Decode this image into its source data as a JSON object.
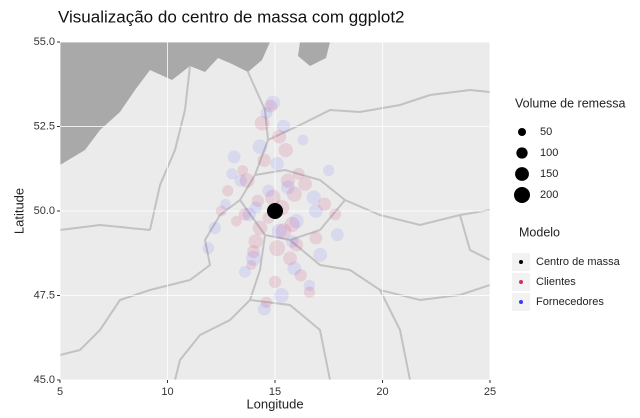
{
  "chart_data": {
    "type": "scatter",
    "title": "Visualização do centro de massa com ggplot2",
    "x_label": "Longitude",
    "y_label": "Latitude",
    "xlim": [
      5,
      25
    ],
    "ylim": [
      45,
      55
    ],
    "xticks": [
      5,
      10,
      15,
      20,
      25
    ],
    "yticks": [
      {
        "value": 45,
        "label": "45.0"
      },
      47.5,
      {
        "value": 50,
        "label": "50.0"
      },
      52.5,
      {
        "value": 55,
        "label": "55.0"
      }
    ],
    "grid": true,
    "size_legend": {
      "title": "Volume de remessa",
      "values": [
        50,
        100,
        150,
        200
      ]
    },
    "legend_title": "Modelo",
    "series": [
      {
        "name": "Centro de massa",
        "color": "#000000",
        "opacity": 1,
        "x": [
          15
        ],
        "y": [
          50
        ],
        "sizes": [
          200
        ]
      },
      {
        "name": "Clientes",
        "color": "#d0306a",
        "opacity": 0.14,
        "x": [
          14.2,
          15.8,
          13.5,
          16.4,
          15.1,
          14.7,
          15.5,
          13.9,
          16.9,
          14.4,
          15.3,
          12.8,
          17.3,
          15.0,
          14.1,
          16.1,
          13.2,
          15.7,
          14.8,
          16.6,
          13.7,
          15.4,
          14.5,
          16.2,
          12.5,
          17.8,
          15.2,
          14.0,
          15.9,
          14.6,
          14.9,
          15.6,
          14.3,
          16.0,
          13.6
        ],
        "y": [
          50.3,
          49.6,
          51.2,
          50.8,
          48.9,
          49.8,
          51.8,
          48.4,
          49.2,
          52.6,
          50.1,
          50.6,
          50.2,
          47.9,
          49.1,
          51.1,
          49.7,
          48.6,
          53.1,
          47.6,
          50.9,
          49.4,
          51.5,
          48.1,
          50.0,
          49.9,
          52.2,
          48.8,
          50.5,
          47.3,
          50.4,
          50.9,
          49.5,
          49.0,
          49.9
        ],
        "sizes": [
          120,
          180,
          90,
          150,
          200,
          110,
          160,
          80,
          130,
          170,
          190,
          100,
          140,
          120,
          160,
          110,
          90,
          150,
          130,
          100,
          170,
          200,
          140,
          120,
          90,
          110,
          150,
          130,
          180,
          100,
          190,
          160,
          170,
          140,
          120
        ]
      },
      {
        "name": "Fornecedores",
        "color": "#3a3aff",
        "opacity": 0.1,
        "x": [
          13.1,
          16.8,
          14.6,
          15.9,
          12.2,
          17.5,
          15.3,
          13.8,
          16.3,
          14.0,
          15.6,
          11.9,
          17.9,
          14.9,
          13.4,
          16.6,
          15.1,
          12.7,
          17.1,
          14.3,
          15.8,
          13.6,
          16.0,
          14.7,
          15.4,
          13.0,
          16.9,
          14.5,
          15.2,
          14.1
        ],
        "y": [
          51.6,
          50.4,
          52.9,
          48.3,
          49.5,
          51.2,
          47.5,
          49.9,
          52.1,
          48.6,
          50.7,
          48.9,
          49.3,
          53.2,
          50.9,
          47.8,
          51.4,
          50.2,
          48.7,
          51.9,
          49.1,
          48.2,
          49.7,
          50.6,
          52.5,
          51.1,
          50.0,
          47.1,
          49.4,
          50.1
        ],
        "sizes": [
          130,
          160,
          110,
          150,
          120,
          100,
          170,
          140,
          90,
          180,
          150,
          110,
          130,
          160,
          120,
          100,
          140,
          90,
          150,
          170,
          130,
          110,
          160,
          120,
          140,
          100,
          150,
          130,
          180,
          120
        ]
      }
    ]
  }
}
